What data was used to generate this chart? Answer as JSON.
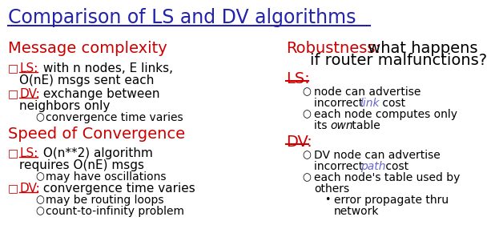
{
  "title": "Comparison of LS and DV algorithms",
  "title_color": "#2222AA",
  "background_color": "#FFFFFF",
  "red": "#CC0000",
  "blue": "#2222AA",
  "black": "#000000",
  "link_color": "#6666CC",
  "path_color": "#6666CC",
  "font_family": "Comic Sans MS",
  "title_fs": 17,
  "header_fs": 14,
  "body_fs": 11,
  "small_fs": 10
}
